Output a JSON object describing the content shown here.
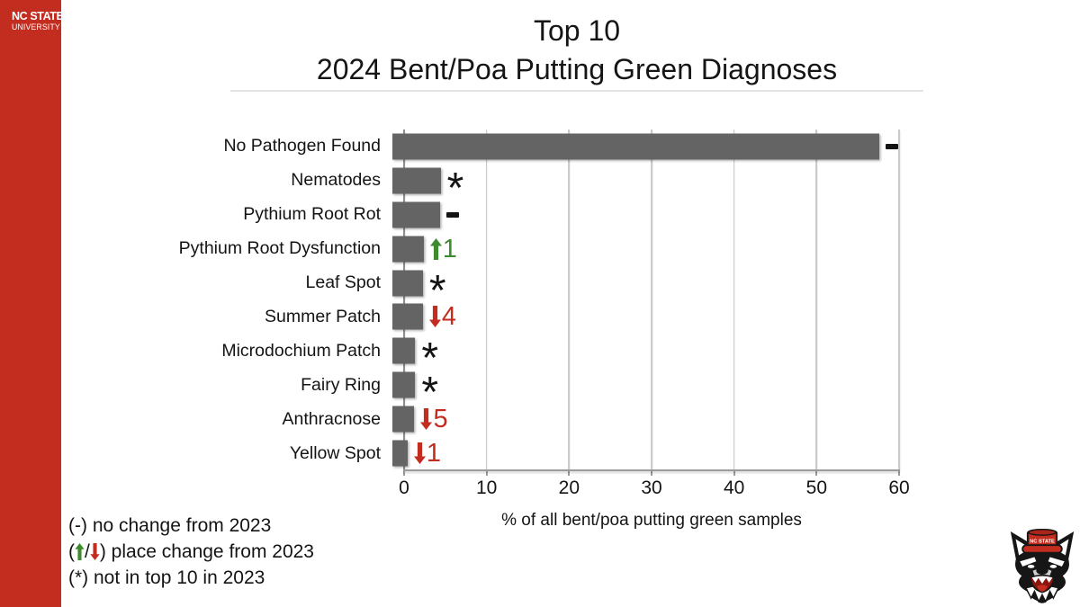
{
  "colors": {
    "brand_red": "#C22D20",
    "bar_gray": "#646464",
    "green": "#3E8A2E",
    "red": "#C22D20",
    "grid_gray": "#cbcbcb",
    "axis_gray": "#9b9b9b",
    "text_black": "#141414"
  },
  "sidebar": {
    "brand_line1": "NC STATE",
    "brand_line2": "UNIVERSITY"
  },
  "header": {
    "title_line1": "Top 10",
    "title_line2": "2024 Bent/Poa Putting Green Diagnoses"
  },
  "chart_data": {
    "type": "bar",
    "orientation": "horizontal",
    "title": "Top 10 2024 Bent/Poa Putting Green Diagnoses",
    "categories": [
      "No Pathogen Found",
      "Nematodes",
      "Pythium Root Rot",
      "Pythium Root Dysfunction",
      "Leaf Spot",
      "Summer Patch",
      "Microdochium Patch",
      "Fairy Ring",
      "Anthracnose",
      "Yellow Spot"
    ],
    "values": [
      57.5,
      5.7,
      5.6,
      3.7,
      3.6,
      3.6,
      2.7,
      2.7,
      2.6,
      1.8
    ],
    "change_markers": [
      {
        "type": "dash"
      },
      {
        "type": "asterisk"
      },
      {
        "type": "dash"
      },
      {
        "type": "up",
        "places": "1"
      },
      {
        "type": "asterisk"
      },
      {
        "type": "down",
        "places": "4"
      },
      {
        "type": "asterisk"
      },
      {
        "type": "asterisk"
      },
      {
        "type": "down",
        "places": "5"
      },
      {
        "type": "down",
        "places": "1"
      }
    ],
    "xlabel": "% of all bent/poa putting green samples",
    "xticks": [
      0,
      10,
      20,
      30,
      40,
      50,
      60
    ],
    "xlim": [
      0,
      60
    ],
    "grid": "vertical gridlines on",
    "legend_position": "bottom-left"
  },
  "legend": {
    "line1": "(-) no change from 2023",
    "line2_prefix": "(",
    "line2_sep": "/",
    "line2_suffix": ") place change from 2023",
    "line3": "(*) not in top 10 in 2023"
  },
  "footer": {
    "mascot_icon": "nc-state-wolfpack-mascot"
  }
}
